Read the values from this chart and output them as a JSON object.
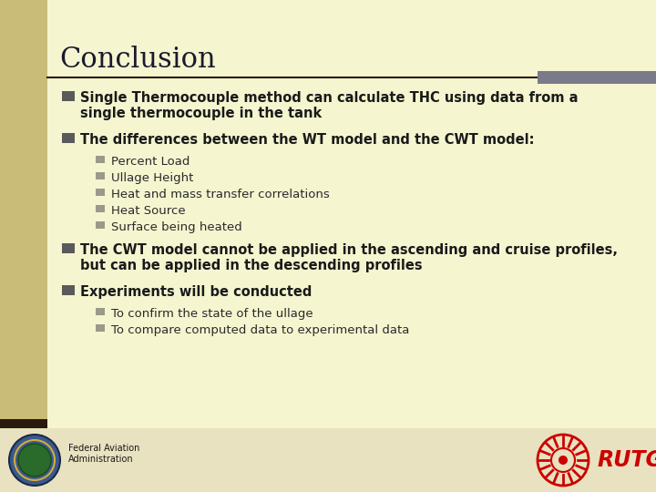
{
  "title": "Conclusion",
  "bg_color": "#f5f5d0",
  "sidebar_color": "#c8bc78",
  "sidebar_dark_color": "#2a1a0e",
  "title_color": "#1a1a2e",
  "title_fontsize": 22,
  "rule_color": "#2a1a0e",
  "rule_gray_color": "#7a7a8a",
  "main_bullet_color": "#5a5a5a",
  "sub_bullet_color": "#9a9a8a",
  "text_color": "#1a1a1a",
  "sub_text_color": "#2a2a2a",
  "main_bullet_size": 10.5,
  "sub_bullet_size": 9.5,
  "footer_bg": "#e8e2c0",
  "rutgers_color": "#cc0000",
  "main_bullets": [
    {
      "text": "Single Thermocouple method can calculate THC using data from a\nsingle thermocouple in the tank",
      "bold": true,
      "sub_bullets": []
    },
    {
      "text": "The differences between the WT model and the CWT model:",
      "bold": true,
      "sub_bullets": [
        "Percent Load",
        "Ullage Height",
        "Heat and mass transfer correlations",
        "Heat Source",
        "Surface being heated"
      ]
    },
    {
      "text": "The CWT model cannot be applied in the ascending and cruise profiles,\nbut can be applied in the descending profiles",
      "bold": true,
      "sub_bullets": []
    },
    {
      "text": "Experiments will be conducted",
      "bold": true,
      "sub_bullets": [
        "To confirm the state of the ullage",
        "To compare computed data to experimental data"
      ]
    }
  ],
  "footer_faa_text": "Federal Aviation\nAdministration",
  "footer_rutgers_text": "RUTGERS"
}
